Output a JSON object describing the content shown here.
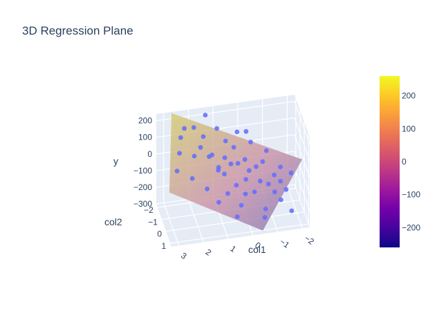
{
  "chart_data": {
    "type": "scatter",
    "title": "3D Regression Plane",
    "axes": {
      "x": {
        "label": "col1",
        "ticks": [
          "3",
          "2",
          "1",
          "0",
          "−1",
          "−2"
        ],
        "range": [
          3.3,
          -2.3
        ]
      },
      "y": {
        "label": "col2",
        "ticks": [
          "−2",
          "−1",
          "0",
          "1"
        ],
        "range": [
          -2.3,
          1.3
        ]
      },
      "z": {
        "label": "y",
        "ticks": [
          "200",
          "100",
          "0",
          "−100",
          "−200",
          "−300"
        ],
        "range": [
          -300,
          240
        ]
      }
    },
    "colorbar": {
      "ticks": [
        "200",
        "100",
        "0",
        "−100",
        "−200"
      ],
      "range": [
        -260,
        260
      ],
      "colors": [
        "#0d0887",
        "#46039f",
        "#7201a8",
        "#9c179e",
        "#bd3786",
        "#d8576b",
        "#ed7953",
        "#fb9f3a",
        "#fdca26",
        "#f0f921"
      ]
    },
    "marker_color": "#636efa",
    "plane_color_low": "#7e6fb3",
    "plane_color_high": "#d4cc6b",
    "points": [
      {
        "x": 2.6,
        "y": -0.9,
        "z": 90
      },
      {
        "x": 2.5,
        "y": -1.2,
        "z": 160
      },
      {
        "x": 2.3,
        "y": -1.5,
        "z": 190
      },
      {
        "x": 2.8,
        "y": -0.3,
        "z": 30
      },
      {
        "x": 2.0,
        "y": -0.9,
        "z": 60
      },
      {
        "x": 2.2,
        "y": -0.2,
        "z": -20
      },
      {
        "x": 1.8,
        "y": -0.6,
        "z": 130
      },
      {
        "x": 1.6,
        "y": -1.1,
        "z": 155
      },
      {
        "x": 1.5,
        "y": -0.3,
        "z": 90
      },
      {
        "x": 1.4,
        "y": -1.8,
        "z": 230
      },
      {
        "x": 1.3,
        "y": -0.8,
        "z": 60
      },
      {
        "x": 1.2,
        "y": 0.1,
        "z": 30
      },
      {
        "x": 1.1,
        "y": -0.4,
        "z": 10
      },
      {
        "x": 1.0,
        "y": -1.4,
        "z": 170
      },
      {
        "x": 0.9,
        "y": -0.2,
        "z": -20
      },
      {
        "x": 0.8,
        "y": -0.7,
        "z": 40
      },
      {
        "x": 0.7,
        "y": -1.1,
        "z": 110
      },
      {
        "x": 0.6,
        "y": -0.4,
        "z": 20
      },
      {
        "x": 0.5,
        "y": 0.3,
        "z": -60
      },
      {
        "x": 0.4,
        "y": -0.9,
        "z": 80
      },
      {
        "x": 0.3,
        "y": -0.5,
        "z": 10
      },
      {
        "x": 0.2,
        "y": -1.3,
        "z": 140
      },
      {
        "x": 0.1,
        "y": 0.2,
        "z": -40
      },
      {
        "x": 0.0,
        "y": -0.6,
        "z": 20
      },
      {
        "x": -0.1,
        "y": -0.2,
        "z": -20
      },
      {
        "x": -0.2,
        "y": 0.5,
        "z": -100
      },
      {
        "x": -0.3,
        "y": -1.0,
        "z": 90
      },
      {
        "x": -0.4,
        "y": -0.3,
        "z": -10
      },
      {
        "x": -0.5,
        "y": 0.1,
        "z": -70
      },
      {
        "x": -0.6,
        "y": 0.8,
        "z": -190
      },
      {
        "x": -0.7,
        "y": -0.5,
        "z": 0
      },
      {
        "x": -0.8,
        "y": 0.3,
        "z": -80
      },
      {
        "x": -0.9,
        "y": -0.8,
        "z": 40
      },
      {
        "x": -1.0,
        "y": 0.6,
        "z": -110
      },
      {
        "x": -1.1,
        "y": -0.1,
        "z": -60
      },
      {
        "x": -1.2,
        "y": 0.9,
        "z": -140
      },
      {
        "x": -1.3,
        "y": 0.2,
        "z": -80
      },
      {
        "x": -1.4,
        "y": -0.4,
        "z": -40
      },
      {
        "x": -1.5,
        "y": 0.4,
        "z": -120
      },
      {
        "x": -1.6,
        "y": 1.1,
        "z": -200
      },
      {
        "x": 0.9,
        "y": 0.6,
        "z": -80
      },
      {
        "x": 0.4,
        "y": 0.9,
        "z": -140
      },
      {
        "x": 1.7,
        "y": 0.4,
        "z": -50
      },
      {
        "x": 0.6,
        "y": 1.1,
        "z": -190
      },
      {
        "x": -0.2,
        "y": -1.5,
        "z": 120
      },
      {
        "x": 1.9,
        "y": -1.6,
        "z": 180
      },
      {
        "x": 0.2,
        "y": 0.7,
        "z": -90
      },
      {
        "x": -1.8,
        "y": -0.2,
        "z": -70
      },
      {
        "x": -0.5,
        "y": 1.2,
        "z": -210
      },
      {
        "x": 1.3,
        "y": 0.8,
        "z": -110
      }
    ]
  }
}
